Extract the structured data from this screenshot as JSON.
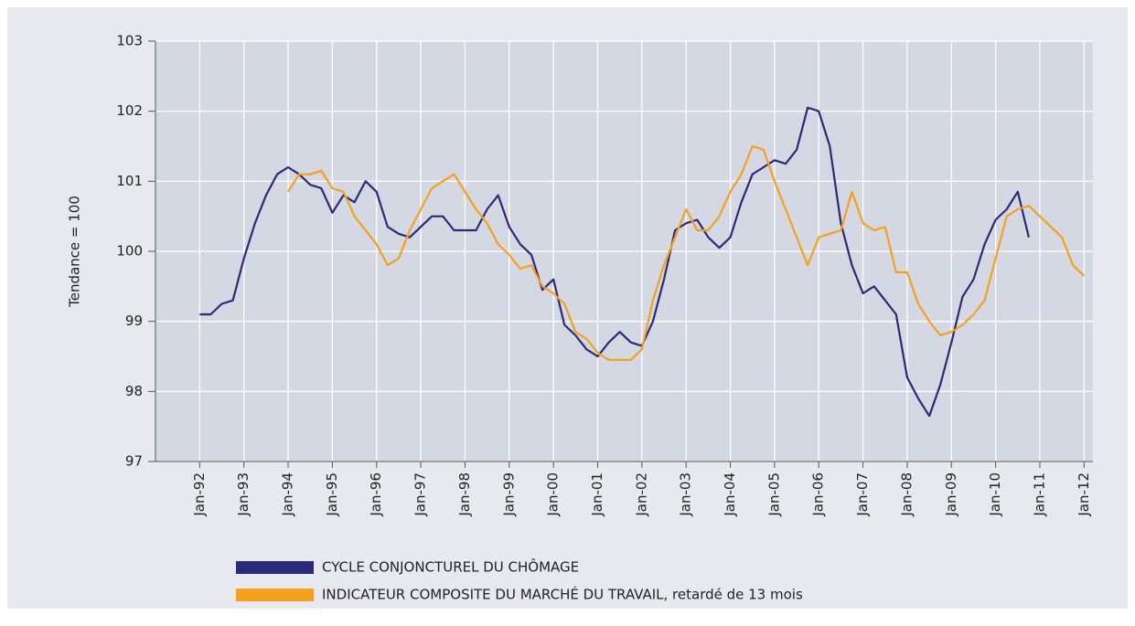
{
  "chart_data": {
    "type": "line",
    "y_label": "Tendance = 100",
    "x": [
      1992,
      1992.25,
      1992.5,
      1992.75,
      1993,
      1993.25,
      1993.5,
      1993.75,
      1994,
      1994.25,
      1994.5,
      1994.75,
      1995,
      1995.25,
      1995.5,
      1995.75,
      1996,
      1996.25,
      1996.5,
      1996.75,
      1997,
      1997.25,
      1997.5,
      1997.75,
      1998,
      1998.25,
      1998.5,
      1998.75,
      1999,
      1999.25,
      1999.5,
      1999.75,
      2000,
      2000.25,
      2000.5,
      2000.75,
      2001,
      2001.25,
      2001.5,
      2001.75,
      2002,
      2002.25,
      2002.5,
      2002.75,
      2003,
      2003.25,
      2003.5,
      2003.75,
      2004,
      2004.25,
      2004.5,
      2004.75,
      2005,
      2005.25,
      2005.5,
      2005.75,
      2006,
      2006.25,
      2006.5,
      2006.75,
      2007,
      2007.25,
      2007.5,
      2007.75,
      2008,
      2008.25,
      2008.5,
      2008.75,
      2009,
      2009.25,
      2009.5,
      2009.75,
      2010,
      2010.25,
      2010.5,
      2010.75,
      2011,
      2011.25,
      2011.5,
      2011.75,
      2012
    ],
    "series": [
      {
        "name": "CYCLE CONJONCTUREL DU CHÔMAGE",
        "color": "#2b2a78",
        "values": [
          99.1,
          99.1,
          99.25,
          99.3,
          99.9,
          100.4,
          100.8,
          101.1,
          101.2,
          101.1,
          100.95,
          100.9,
          100.55,
          100.8,
          100.7,
          101.0,
          100.85,
          100.35,
          100.25,
          100.2,
          100.35,
          100.5,
          100.5,
          100.3,
          100.3,
          100.3,
          100.6,
          100.8,
          100.35,
          100.1,
          99.95,
          99.45,
          99.6,
          98.95,
          98.8,
          98.6,
          98.5,
          98.7,
          98.85,
          98.7,
          98.65,
          99.0,
          99.6,
          100.3,
          100.4,
          100.45,
          100.2,
          100.05,
          100.2,
          100.7,
          101.1,
          101.2,
          101.3,
          101.25,
          101.45,
          102.05,
          102.0,
          101.5,
          100.4,
          99.8,
          99.4,
          99.5,
          99.3,
          99.1,
          98.2,
          97.9,
          97.65,
          98.1,
          98.7,
          99.35,
          99.6,
          100.1,
          100.45,
          100.6,
          100.85,
          100.2,
          null,
          null,
          null,
          null,
          null
        ]
      },
      {
        "name": "INDICATEUR COMPOSITE DU MARCHÉ DU TRAVAIL, retardé de 13 mois",
        "color": "#f5a020",
        "values": [
          null,
          null,
          null,
          null,
          null,
          null,
          null,
          null,
          100.85,
          101.1,
          101.1,
          101.15,
          100.9,
          100.85,
          100.5,
          100.3,
          100.1,
          99.8,
          99.9,
          100.3,
          100.6,
          100.9,
          101.0,
          101.1,
          100.85,
          100.6,
          100.4,
          100.1,
          99.95,
          99.75,
          99.8,
          99.5,
          99.4,
          99.25,
          98.85,
          98.75,
          98.55,
          98.45,
          98.45,
          98.45,
          98.6,
          99.3,
          99.8,
          100.2,
          100.6,
          100.3,
          100.3,
          100.5,
          100.85,
          101.1,
          101.5,
          101.45,
          101.0,
          100.6,
          100.2,
          99.8,
          100.2,
          100.25,
          100.3,
          100.85,
          100.4,
          100.3,
          100.35,
          99.7,
          99.7,
          99.25,
          99.0,
          98.8,
          98.85,
          98.95,
          99.1,
          99.3,
          99.9,
          100.5,
          100.6,
          100.65,
          100.5,
          100.35,
          100.2,
          99.8,
          99.65
        ]
      }
    ],
    "xlim": [
      1991,
      2012.2
    ],
    "xticks": [
      {
        "value": 1992,
        "label": "Jan-92"
      },
      {
        "value": 1993,
        "label": "Jan-93"
      },
      {
        "value": 1994,
        "label": "Jan-94"
      },
      {
        "value": 1995,
        "label": "Jan-95"
      },
      {
        "value": 1996,
        "label": "Jan-96"
      },
      {
        "value": 1997,
        "label": "Jan-97"
      },
      {
        "value": 1998,
        "label": "Jan-98"
      },
      {
        "value": 1999,
        "label": "Jan-99"
      },
      {
        "value": 2000,
        "label": "Jan-00"
      },
      {
        "value": 2001,
        "label": "Jan-01"
      },
      {
        "value": 2002,
        "label": "Jan-02"
      },
      {
        "value": 2003,
        "label": "Jan-03"
      },
      {
        "value": 2004,
        "label": "Jan-04"
      },
      {
        "value": 2005,
        "label": "Jan-05"
      },
      {
        "value": 2006,
        "label": "Jan-06"
      },
      {
        "value": 2007,
        "label": "Jan-07"
      },
      {
        "value": 2008,
        "label": "Jan-08"
      },
      {
        "value": 2009,
        "label": "Jan-09"
      },
      {
        "value": 2010,
        "label": "Jan-10"
      },
      {
        "value": 2011,
        "label": "Jan-11"
      },
      {
        "value": 2012,
        "label": "Jan-12"
      }
    ],
    "ylim": [
      97,
      103
    ],
    "yticks": [
      97,
      98,
      99,
      100,
      101,
      102,
      103
    ],
    "grid": true
  }
}
